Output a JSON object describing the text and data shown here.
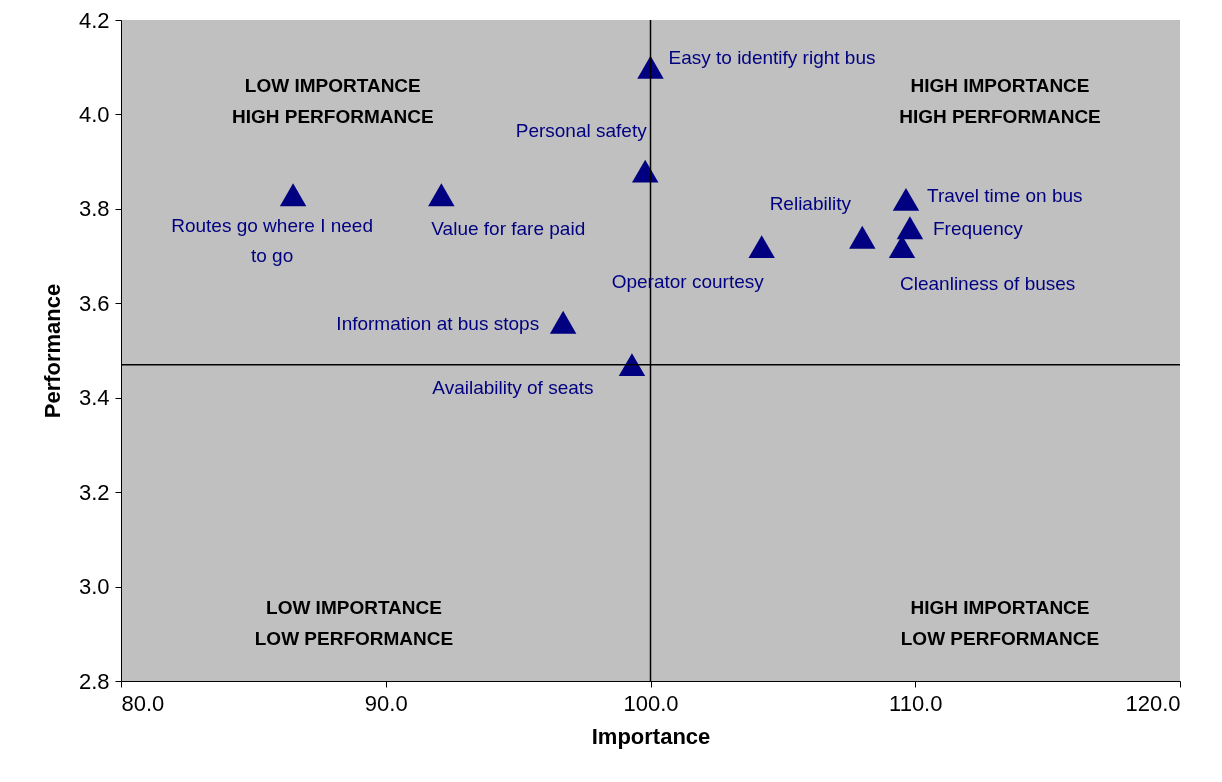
{
  "chart_data": {
    "type": "scatter",
    "xlabel": "Importance",
    "ylabel": "Performance",
    "x": [
      100.0,
      99.8,
      86.5,
      92.1,
      109.65,
      109.8,
      108.0,
      104.2,
      109.5,
      96.7,
      99.3
    ],
    "values": [
      4.1,
      3.88,
      3.83,
      3.83,
      3.82,
      3.76,
      3.74,
      3.72,
      3.72,
      3.56,
      3.47
    ],
    "color": "#000080",
    "marker": "triangle",
    "grid": false,
    "xlim": [
      80,
      120
    ],
    "xticks": [
      {
        "value": 80,
        "label": "80.0"
      },
      {
        "value": 90,
        "label": "90.0"
      },
      {
        "value": 100,
        "label": "100.0"
      },
      {
        "value": 110,
        "label": "110.0"
      },
      {
        "value": 120,
        "label": "120.0"
      }
    ],
    "ylim": [
      2.8,
      4.2
    ],
    "yticks": [
      {
        "value": 2.8,
        "label": "2.8"
      },
      {
        "value": 3.0,
        "label": "3.0"
      },
      {
        "value": 3.2,
        "label": "3.2"
      },
      {
        "value": 3.4,
        "label": "3.4"
      },
      {
        "value": 3.6,
        "label": "3.6"
      },
      {
        "value": 3.8,
        "label": "3.8"
      },
      {
        "value": 4.0,
        "label": "4.0"
      },
      {
        "value": 4.2,
        "label": "4.2"
      }
    ],
    "ref_lines": [
      {
        "axis": "x",
        "value": 100,
        "color": "#000000"
      },
      {
        "axis": "y",
        "value": 3.47,
        "color": "#000000"
      }
    ],
    "annotations": [
      {
        "text": "Easy to identify right bus",
        "x": 100.0,
        "y": 4.1
      },
      {
        "text": "Personal safety",
        "x": 99.8,
        "y": 3.88
      },
      {
        "text": "Routes go where I need to go",
        "x": 86.5,
        "y": 3.83
      },
      {
        "text": "Value for fare paid",
        "x": 92.1,
        "y": 3.83
      },
      {
        "text": "Travel time on bus",
        "x": 109.65,
        "y": 3.82
      },
      {
        "text": "Frequency",
        "x": 109.8,
        "y": 3.76
      },
      {
        "text": "Reliability",
        "x": 108.0,
        "y": 3.74
      },
      {
        "text": "Operator courtesy",
        "x": 104.2,
        "y": 3.72
      },
      {
        "text": "Cleanliness of buses",
        "x": 109.5,
        "y": 3.72
      },
      {
        "text": "Information at bus stops",
        "x": 96.7,
        "y": 3.56
      },
      {
        "text": "Availability of seats",
        "x": 99.3,
        "y": 3.47
      },
      "LOW IMPORTANCE HIGH PERFORMANCE",
      "HIGH IMPORTANCE HIGH PERFORMANCE",
      "LOW IMPORTANCE LOW PERFORMANCE",
      "HIGH IMPORTANCE LOW PERFORMANCE"
    ]
  }
}
